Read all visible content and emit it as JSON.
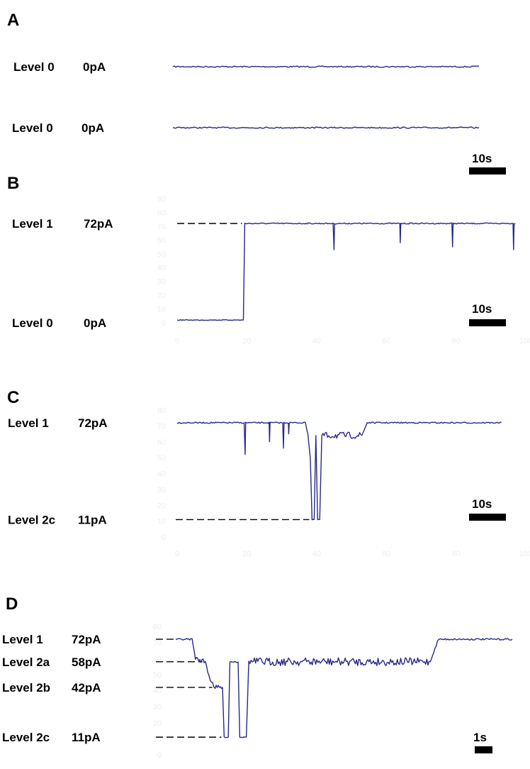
{
  "chart_data": [
    {
      "type": "line",
      "panel": "A",
      "series": [
        {
          "label": "Level 0",
          "current": "0pA",
          "x": [
            0,
            86
          ],
          "y": [
            0,
            0
          ]
        },
        {
          "label": "Level 0",
          "current": "0pA",
          "x": [
            0,
            86
          ],
          "y": [
            0,
            0
          ]
        }
      ],
      "scalebar": "10s",
      "grid": false
    },
    {
      "type": "line",
      "panel": "B",
      "ylim": [
        0,
        90
      ],
      "xlim": [
        0,
        100
      ],
      "y_ticks": [
        "0",
        "10",
        "20",
        "30",
        "40",
        "50",
        "60",
        "70",
        "80",
        "90"
      ],
      "x_ticks": [
        "0",
        "20",
        "40",
        "60",
        "80",
        "100"
      ],
      "levels": [
        {
          "label": "Level 1",
          "current": "72pA",
          "value": 72
        },
        {
          "label": "Level 0",
          "current": "0pA",
          "value": 0
        }
      ],
      "events": [
        {
          "t": 0,
          "value": 2
        },
        {
          "t": 19,
          "value": 2
        },
        {
          "t": 19.4,
          "value": 72
        },
        {
          "t": 97,
          "value": 72
        }
      ],
      "spikes": [
        {
          "t": 45,
          "value": 53
        },
        {
          "t": 64,
          "value": 58
        },
        {
          "t": 79,
          "value": 55
        },
        {
          "t": 96.5,
          "value": 53
        }
      ],
      "scalebar": "10s",
      "grid": false
    },
    {
      "type": "line",
      "panel": "C",
      "ylim": [
        0,
        80
      ],
      "xlim": [
        0,
        100
      ],
      "y_ticks": [
        "0",
        "10",
        "20",
        "30",
        "40",
        "50",
        "60",
        "70",
        "80"
      ],
      "x_ticks": [
        "0",
        "20",
        "40",
        "60",
        "80",
        "100"
      ],
      "levels": [
        {
          "label": "Level 1",
          "current": "72pA",
          "value": 72
        },
        {
          "label": "Level 2c",
          "current": "11pA",
          "value": 11
        }
      ],
      "events": [
        {
          "t": 0,
          "value": 72
        },
        {
          "t": 36.8,
          "value": 72
        },
        {
          "t": 37.5,
          "value": 65
        },
        {
          "t": 38.2,
          "value": 50
        },
        {
          "t": 38.7,
          "value": 11
        },
        {
          "t": 39.3,
          "value": 11
        },
        {
          "t": 39.8,
          "value": 64
        },
        {
          "t": 40.3,
          "value": 11
        },
        {
          "t": 40.9,
          "value": 11
        },
        {
          "t": 41.5,
          "value": 64
        },
        {
          "t": 53,
          "value": 64
        },
        {
          "t": 54.5,
          "value": 72
        },
        {
          "t": 93,
          "value": 72
        }
      ],
      "spikes": [
        {
          "t": 19.5,
          "value": 52
        },
        {
          "t": 26.5,
          "value": 60
        },
        {
          "t": 30.5,
          "value": 56
        },
        {
          "t": 32,
          "value": 65
        }
      ],
      "scalebar": "10s",
      "grid": false
    },
    {
      "type": "line",
      "panel": "D",
      "ylim": [
        0,
        80
      ],
      "y_ticks": [
        "0",
        "10",
        "20",
        "30",
        "40",
        "50",
        "60",
        "70",
        "80"
      ],
      "levels": [
        {
          "label": "Level 1",
          "current": "72pA",
          "value": 72
        },
        {
          "label": "Level 2a",
          "current": "58pA",
          "value": 58
        },
        {
          "label": "Level 2b",
          "current": "42pA",
          "value": 42
        },
        {
          "label": "Level 2c",
          "current": "11pA",
          "value": 11
        }
      ],
      "events": [
        {
          "t": 0,
          "value": 72
        },
        {
          "t": 2,
          "value": 72
        },
        {
          "t": 2.4,
          "value": 60
        },
        {
          "t": 3.6,
          "value": 58
        },
        {
          "t": 4.2,
          "value": 47
        },
        {
          "t": 4.8,
          "value": 42
        },
        {
          "t": 5.7,
          "value": 42
        },
        {
          "t": 5.9,
          "value": 11
        },
        {
          "t": 6.4,
          "value": 11
        },
        {
          "t": 6.6,
          "value": 58
        },
        {
          "t": 7.6,
          "value": 58
        },
        {
          "t": 7.8,
          "value": 11
        },
        {
          "t": 8.6,
          "value": 11
        },
        {
          "t": 8.9,
          "value": 58
        },
        {
          "t": 31,
          "value": 58
        },
        {
          "t": 32,
          "value": 72
        },
        {
          "t": 41,
          "value": 72
        }
      ],
      "scalebar": "1s",
      "grid": false
    }
  ]
}
